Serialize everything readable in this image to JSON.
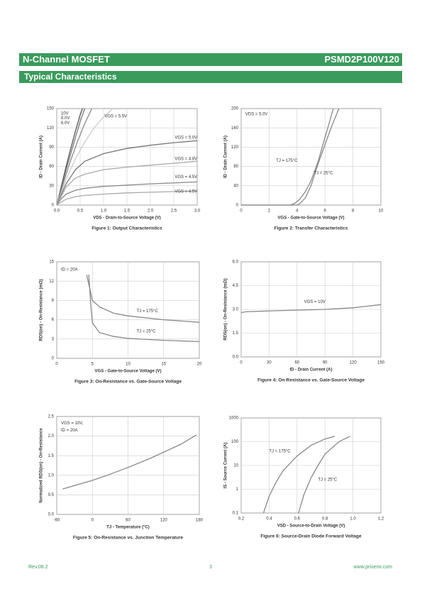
{
  "header": {
    "left": "N-Channel MOSFET",
    "right": "PSMD2P100V120"
  },
  "section": "Typical Characteristics",
  "footer": {
    "left": "Rev.06.2",
    "center": "3",
    "right": "www.prisemi.com"
  },
  "chart_data": [
    {
      "type": "line",
      "caption": "Figure 1:  Output Characteristics",
      "xlabel": "VDS - Drain-to-Source Voltage (V)",
      "ylabel": "ID - Drain Current (A)",
      "xlim": [
        0,
        3
      ],
      "xticks": [
        {
          "value": 0,
          "label": "0.0"
        },
        0.5,
        {
          "value": 1,
          "label": "1.0"
        },
        1.5,
        {
          "value": 2,
          "label": "2.0"
        },
        2.5,
        {
          "value": 3,
          "label": "3.0"
        }
      ],
      "ylim": [
        0,
        150
      ],
      "yticks": [
        0,
        30,
        60,
        90,
        120,
        150
      ],
      "grid": true,
      "annotations": [
        "10V",
        "8.0V",
        "6.0V",
        "VGS = 5.5V",
        "VGS = 5.0V",
        "VGS = 4.8V",
        "VGS = 4.5V",
        "VGS = 4.5V"
      ],
      "series": [
        {
          "color": "#555555",
          "x": [
            0,
            0.1,
            0.2,
            0.3,
            0.4,
            0.5,
            0.55
          ],
          "values": [
            0,
            30,
            60,
            88,
            115,
            140,
            150
          ]
        },
        {
          "color": "#777777",
          "x": [
            0,
            0.1,
            0.2,
            0.3,
            0.4,
            0.5,
            0.6
          ],
          "values": [
            0,
            27,
            55,
            80,
            105,
            130,
            150
          ]
        },
        {
          "color": "#888888",
          "x": [
            0,
            0.1,
            0.2,
            0.3,
            0.45,
            0.6,
            0.75
          ],
          "values": [
            0,
            24,
            48,
            70,
            100,
            127,
            150
          ]
        },
        {
          "color": "#cccccc",
          "x": [
            0,
            0.1,
            0.2,
            0.4,
            0.6,
            0.8,
            1.0,
            1.2
          ],
          "values": [
            0,
            20,
            40,
            72,
            98,
            120,
            137,
            150
          ]
        },
        {
          "color": "#777777",
          "x": [
            0,
            0.1,
            0.2,
            0.4,
            0.6,
            1,
            1.5,
            2,
            2.5,
            3
          ],
          "values": [
            0,
            17,
            33,
            55,
            68,
            80,
            88,
            93,
            97,
            100
          ]
        },
        {
          "color": "#aaaaaa",
          "x": [
            0,
            0.1,
            0.2,
            0.4,
            0.6,
            1,
            1.5,
            2,
            3
          ],
          "values": [
            0,
            14,
            28,
            42,
            48,
            55,
            59,
            62,
            68
          ]
        },
        {
          "color": "#888888",
          "x": [
            0,
            0.1,
            0.2,
            0.4,
            0.6,
            1,
            1.5,
            2,
            3
          ],
          "values": [
            0,
            10,
            17,
            23,
            26,
            29,
            31,
            33,
            36
          ]
        },
        {
          "color": "#aaaaaa",
          "x": [
            0,
            0.1,
            0.2,
            0.4,
            0.6,
            1,
            1.5,
            2,
            3
          ],
          "values": [
            0,
            5,
            9,
            13,
            15,
            17,
            19,
            20,
            22
          ]
        }
      ]
    },
    {
      "type": "line",
      "caption": "Figure 2:  Transfer Characteristics",
      "xlabel": "VGS - Gate-to-Source Voltage (V)",
      "ylabel": "ID - Drain Current (A)",
      "xlim": [
        0,
        10
      ],
      "xticks": [
        0,
        2,
        4,
        6,
        8,
        10
      ],
      "ylim": [
        0,
        200
      ],
      "yticks": [
        0,
        40,
        80,
        120,
        160,
        200
      ],
      "grid": true,
      "annotations": [
        "VDS = 5.0V",
        "TJ = 175°C",
        "TJ = 25°C"
      ],
      "series": [
        {
          "color": "#888888",
          "x": [
            0,
            3.5,
            3.8,
            4.2,
            4.6,
            5,
            5.5,
            6,
            6.6
          ],
          "values": [
            0,
            0,
            3,
            12,
            28,
            50,
            90,
            140,
            200
          ]
        },
        {
          "color": "#888888",
          "x": [
            0,
            4,
            4.2,
            4.6,
            5,
            5.5,
            6,
            6.5,
            7
          ],
          "values": [
            0,
            0,
            3,
            15,
            40,
            85,
            125,
            165,
            200
          ]
        }
      ]
    },
    {
      "type": "line",
      "caption": "Figure 3:  On-Resistance vs. Gate-Source Voltage",
      "xlabel": "VGS - Gate-to-Source Voltage (V)",
      "ylabel": "RDS(on) - On-Resistance (mΩ)",
      "xlim": [
        0,
        20
      ],
      "xticks": [
        0,
        5,
        10,
        15,
        20
      ],
      "ylim": [
        0,
        15
      ],
      "yticks": [
        0,
        3,
        6,
        9,
        12,
        15
      ],
      "grid": true,
      "annotations": [
        "ID = 20A",
        "TJ = 175°C",
        "TJ = 25°C"
      ],
      "series": [
        {
          "color": "#888888",
          "x": [
            4.2,
            5,
            6,
            8,
            10,
            15,
            20
          ],
          "values": [
            13,
            9,
            8,
            7,
            6.6,
            6,
            5.6
          ]
        },
        {
          "color": "#888888",
          "x": [
            4.5,
            4.8,
            5,
            6,
            8,
            10,
            15,
            20
          ],
          "values": [
            13,
            8,
            5.5,
            4,
            3.4,
            3.1,
            2.8,
            2.6
          ]
        }
      ]
    },
    {
      "type": "line",
      "caption": "Figure 4:  On-Resistance vs. Gate-Source Voltage",
      "xlabel": "ID - Drain Current (A)",
      "ylabel": "RDS(on) - On-Resistance (mΩ)",
      "xlim": [
        0,
        150
      ],
      "xticks": [
        0,
        30,
        60,
        90,
        120,
        150
      ],
      "ylim": [
        0,
        6
      ],
      "yticks": [
        {
          "value": 0,
          "label": "0.0"
        },
        1.5,
        {
          "value": 3,
          "label": "3.0"
        },
        4.5,
        {
          "value": 6,
          "label": "6.0"
        }
      ],
      "grid": true,
      "annotations": [
        "VGS = 10V"
      ],
      "series": [
        {
          "color": "#888888",
          "x": [
            0,
            5,
            30,
            60,
            90,
            120,
            150
          ],
          "values": [
            2.8,
            2.85,
            2.9,
            2.95,
            3,
            3.1,
            3.3
          ]
        }
      ]
    },
    {
      "type": "line",
      "caption": "Figure 5:  On-Resistance vs. Junction Temperature",
      "xlabel": "TJ - Temperature (°C)",
      "ylabel": "Normalized RDS(on) - On-Resistance",
      "xlim": [
        -60,
        180
      ],
      "xticks": [
        -60,
        0,
        60,
        120,
        180
      ],
      "ylim": [
        0,
        2.5
      ],
      "yticks": [
        {
          "value": 0,
          "label": "0.0"
        },
        0.5,
        {
          "value": 1,
          "label": "1.0"
        },
        1.5,
        {
          "value": 2,
          "label": "2.0"
        },
        2.5
      ],
      "grid": true,
      "annotations": [
        "VGS = 10V,",
        "ID = 20A"
      ],
      "series": [
        {
          "color": "#888888",
          "x": [
            -50,
            0,
            25,
            60,
            100,
            150,
            175
          ],
          "values": [
            0.65,
            0.87,
            1,
            1.2,
            1.45,
            1.8,
            2.03
          ]
        }
      ]
    },
    {
      "type": "line",
      "caption": "Figure 6:  Source-Drain Diode Forward Voltage",
      "xlabel": "VSD - Source-to-Drain Voltage (V)",
      "ylabel": "IS - Source Current (A)",
      "xlim": [
        0.2,
        1.2
      ],
      "xticks": [
        0.2,
        0.4,
        0.6,
        0.8,
        {
          "value": 1,
          "label": "1.0"
        },
        1.2
      ],
      "ylim": [
        0.1,
        1000
      ],
      "ylog": true,
      "yticks": [
        0.1,
        1,
        10,
        100,
        1000
      ],
      "grid": true,
      "annotations": [
        "TJ = 175°C",
        "TJ = 25°C"
      ],
      "series": [
        {
          "color": "#888888",
          "x": [
            0.36,
            0.4,
            0.45,
            0.5,
            0.6,
            0.7,
            0.8,
            0.87
          ],
          "values": [
            0.1,
            0.5,
            2,
            6,
            25,
            70,
            130,
            170
          ]
        },
        {
          "color": "#888888",
          "x": [
            0.61,
            0.65,
            0.7,
            0.75,
            0.8,
            0.9,
            0.98
          ],
          "values": [
            0.1,
            0.6,
            3,
            10,
            30,
            100,
            170
          ]
        }
      ]
    }
  ]
}
